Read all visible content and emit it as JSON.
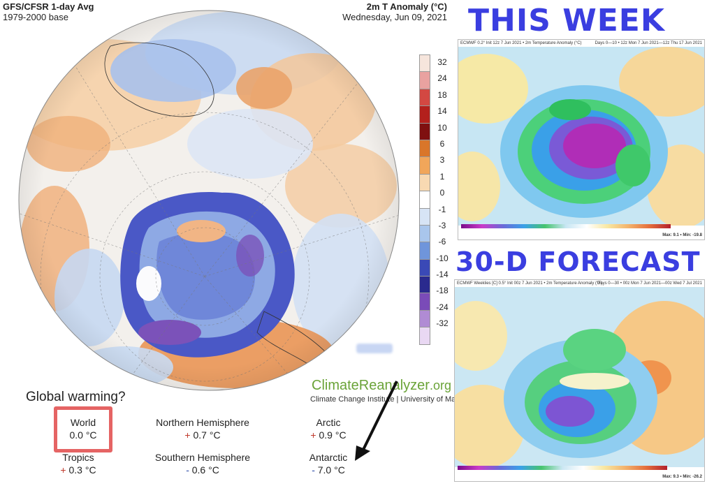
{
  "left_panel": {
    "title_left_1": "GFS/CFSR 1-day Avg",
    "title_left_2": "1979-2000 base",
    "title_right_1": "2m T Anomaly (°C)",
    "title_right_2": "Wednesday, Jun 09, 2021",
    "legend": {
      "labels": [
        "32",
        "24",
        "18",
        "14",
        "10",
        "6",
        "3",
        "1",
        "0",
        "-1",
        "-3",
        "-6",
        "-10",
        "-14",
        "-18",
        "-24",
        "-32"
      ],
      "colors": [
        "#f6e5dc",
        "#e9a2a0",
        "#d34842",
        "#b3201c",
        "#7f1010",
        "#d9762a",
        "#f1a65a",
        "#f8d9b2",
        "#ffffff",
        "#d7e4f5",
        "#a9c6ec",
        "#6f95db",
        "#3a49b6",
        "#2a2a8e",
        "#7a4bb8",
        "#b08bd4",
        "#e9d8f3"
      ]
    },
    "logo_main": "ClimateReanalyzer",
    "logo_suffix": ".org",
    "logo_sub": "Climate Change Institute | University of Maine",
    "annotation": "Global warming?",
    "stats": {
      "world_label": "World",
      "world_value": "0.0 °C",
      "nh_label": "Northern Hemisphere",
      "nh_sign": "+",
      "nh_value": "0.7 °C",
      "arctic_label": "Arctic",
      "arctic_sign": "+",
      "arctic_value": "0.9 °C",
      "tropics_label": "Tropics",
      "tropics_sign": "+",
      "tropics_value": "0.3 °C",
      "sh_label": "Southern Hemisphere",
      "sh_sign": "-",
      "sh_value": "0.6 °C",
      "antarctic_label": "Antarctic",
      "antarctic_sign": "-",
      "antarctic_value": "7.0 °C"
    }
  },
  "right_panel": {
    "heading_week": "THIS WEEK",
    "heading_forecast": "30-D FORECAST",
    "top_map": {
      "header_left": "ECMWF 0.2° Init 12z 7 Jun 2021 • 2m Temperature Anomaly (°C)",
      "header_right": "Days 0—10 • 12z Mon 7 Jun 2021—12z Thu 17 Jun 2021",
      "footer": "Max: 9.1 • Min: -19.8"
    },
    "bottom_map": {
      "header_left": "ECMWF Weeklies [C] 0.5° Init 00z 7 Jun 2021 • 2m Temperature Anomaly (°F)",
      "header_right": "Days 0—30 • 00z Mon 7 Jun 2021—00z Wed 7 Jul 2021",
      "footer": "Max: 9.3 • Min: -26.2"
    }
  }
}
